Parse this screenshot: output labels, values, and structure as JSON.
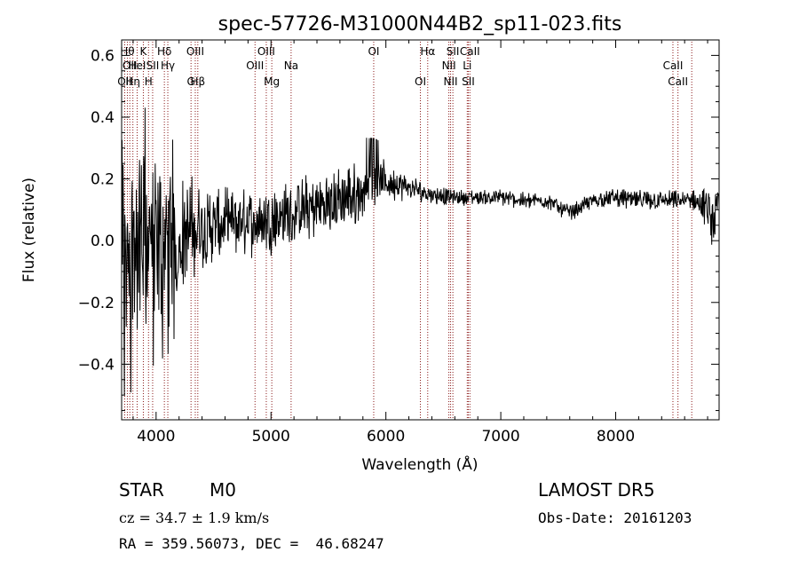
{
  "chart_data": {
    "type": "line",
    "title": "spec-57726-M31000N44B2_sp11-023.fits",
    "xlabel": "Wavelength (Å)",
    "ylabel": "Flux (relative)",
    "xlim": [
      3700,
      8900
    ],
    "ylim": [
      -0.58,
      0.65
    ],
    "xticks": [
      4000,
      5000,
      6000,
      7000,
      8000
    ],
    "yticks": [
      -0.4,
      -0.2,
      0.0,
      0.2,
      0.4,
      0.6
    ],
    "xtick_labels": [
      "4000",
      "5000",
      "6000",
      "7000",
      "8000"
    ],
    "ytick_labels": [
      "−0.4",
      "−0.2",
      "0.0",
      "0.2",
      "0.4",
      "0.6"
    ],
    "grid": false,
    "spectrum_anchors": {
      "x": [
        3700,
        3800,
        3900,
        4000,
        4100,
        4200,
        4300,
        4400,
        4600,
        4800,
        5000,
        5200,
        5400,
        5600,
        5800,
        5900,
        6000,
        6100,
        6200,
        6400,
        6600,
        6800,
        7000,
        7200,
        7400,
        7600,
        7700,
        7800,
        8000,
        8200,
        8400,
        8600,
        8700,
        8800,
        8850,
        8900
      ],
      "y": [
        0.0,
        -0.02,
        0.0,
        0.0,
        -0.01,
        0.01,
        0.03,
        0.04,
        0.05,
        0.06,
        0.07,
        0.09,
        0.11,
        0.13,
        0.16,
        0.18,
        0.19,
        0.18,
        0.17,
        0.15,
        0.14,
        0.14,
        0.14,
        0.13,
        0.13,
        0.09,
        0.11,
        0.13,
        0.14,
        0.13,
        0.13,
        0.13,
        0.13,
        0.1,
        0.05,
        0.13
      ],
      "amplitude": [
        0.28,
        0.26,
        0.24,
        0.22,
        0.2,
        0.16,
        0.13,
        0.11,
        0.09,
        0.08,
        0.08,
        0.08,
        0.08,
        0.08,
        0.07,
        0.06,
        0.05,
        0.04,
        0.03,
        0.025,
        0.02,
        0.02,
        0.02,
        0.02,
        0.02,
        0.02,
        0.02,
        0.02,
        0.025,
        0.025,
        0.025,
        0.025,
        0.03,
        0.05,
        0.06,
        0.04
      ]
    },
    "line_markers": [
      {
        "wave": 3727,
        "label": "OII",
        "row": 2
      },
      {
        "wave": 3750,
        "label": "Hθ",
        "row": 0
      },
      {
        "wave": 3771,
        "label": "OII",
        "row": 1
      },
      {
        "wave": 3798,
        "label": "Hη",
        "row": 2
      },
      {
        "wave": 3835,
        "label": "HeI",
        "row": 1
      },
      {
        "wave": 3889,
        "label": "K",
        "row": 0
      },
      {
        "wave": 3934,
        "label": "H",
        "row": 2
      },
      {
        "wave": 3970,
        "label": "SII",
        "row": 1
      },
      {
        "wave": 4072,
        "label": "Hδ",
        "row": 0
      },
      {
        "wave": 4102,
        "label": "Hγ",
        "row": 1
      },
      {
        "wave": 4304,
        "label": "G",
        "row": 2
      },
      {
        "wave": 4341,
        "label": "OIII",
        "row": 0
      },
      {
        "wave": 4363,
        "label": "Hβ",
        "row": 2
      },
      {
        "wave": 4861,
        "label": "OIII",
        "row": 1
      },
      {
        "wave": 4959,
        "label": "OIII",
        "row": 0
      },
      {
        "wave": 5007,
        "label": "Mg",
        "row": 2
      },
      {
        "wave": 5175,
        "label": "Na",
        "row": 1
      },
      {
        "wave": 5894,
        "label": "OI",
        "row": 0
      },
      {
        "wave": 6300,
        "label": "OI",
        "row": 2
      },
      {
        "wave": 6364,
        "label": "Hα",
        "row": 0
      },
      {
        "wave": 6548,
        "label": "NII",
        "row": 1
      },
      {
        "wave": 6563,
        "label": "NII",
        "row": 2
      },
      {
        "wave": 6583,
        "label": "SII",
        "row": 0
      },
      {
        "wave": 6708,
        "label": "Li",
        "row": 1
      },
      {
        "wave": 6717,
        "label": "SII",
        "row": 2
      },
      {
        "wave": 6731,
        "label": "CaII",
        "row": 0
      },
      {
        "wave": 8498,
        "label": "CaII",
        "row": 1
      },
      {
        "wave": 8542,
        "label": "CaII",
        "row": 2
      },
      {
        "wave": 8662,
        "label": "",
        "row": 0
      }
    ],
    "colors": {
      "spectrum": "#000000",
      "markers": "#8b1a1a",
      "axes": "#000000"
    }
  },
  "info": {
    "object_class": "STAR",
    "subclass": "M0",
    "survey": "LAMOST DR5",
    "redshift": "cz = 34.7 ± 1.9 km/s",
    "obs_date": "Obs-Date: 20161203",
    "coords": "RA = 359.56073, DEC =  46.68247"
  }
}
